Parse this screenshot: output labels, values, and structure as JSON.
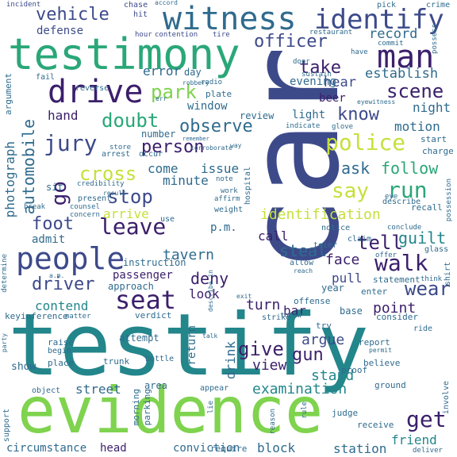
{
  "palette": {
    "dark": "#3b1f6b",
    "indigo": "#3d4a8a",
    "blue": "#2f6b8e",
    "teal": "#23868b",
    "green": "#2aa778",
    "lime": "#7fd34e",
    "yellow": "#c6e03b"
  },
  "words": {
    "car": "car",
    "testify": "testify",
    "evidence": "evidence",
    "testimony": "testimony",
    "witness": "witness",
    "identify": "identify",
    "man": "man",
    "drive": "drive",
    "people": "people",
    "police": "police",
    "officer": "officer",
    "vehicle": "vehicle",
    "jury": "jury",
    "scene": "scene",
    "take": "take",
    "doubt": "doubt",
    "person": "person",
    "identification": "identification",
    "say": "say",
    "run": "run",
    "leave": "leave",
    "stop": "stop",
    "prove": "prove",
    "seat": "seat",
    "walk": "walk",
    "tell": "tell",
    "get": "get",
    "wear": "wear",
    "give": "give",
    "gun": "gun",
    "examination": "examination",
    "driver": "driver",
    "go": "go",
    "automobile": "automobile",
    "cross": "cross",
    "observe": "observe",
    "park": "park",
    "know": "know",
    "follow": "follow",
    "record": "record",
    "establish": "establish",
    "hear": "hear",
    "foot": "foot",
    "arrive": "arrive",
    "deny": "deny",
    "tavern": "tavern",
    "steal": "steal",
    "guilt": "guilt",
    "face": "face",
    "point": "point",
    "turn": "turn",
    "argue": "argue",
    "drink": "drink",
    "view": "view",
    "stand": "stand",
    "street": "street",
    "friend": "friend",
    "block": "block",
    "station": "station",
    "conviction": "conviction",
    "circumstance": "circumstance",
    "head": "head",
    "defense": "defense",
    "error": "error",
    "motion": "motion",
    "night": "night",
    "hand": "hand",
    "photograph": "photograph",
    "passenger": "passenger",
    "contend": "contend",
    "admit": "admit",
    "come": "come",
    "minute": "minute",
    "issue": "issue",
    "ask": "ask",
    "call": "call",
    "look": "look",
    "bar": "bar",
    "pull": "pull",
    "evening": "evening",
    "beer": "beer",
    "window": "window",
    "review": "review",
    "light": "light",
    "incident": "incident",
    "chase": "chase",
    "hit": "hit",
    "accord": "accord",
    "pick": "pick",
    "crime": "crime",
    "hour": "hour",
    "contention": "contention",
    "tire": "tire",
    "restaurant": "restaurant",
    "commit": "commit",
    "possess": "possess",
    "door": "door",
    "have": "have",
    "sustain": "sustain",
    "eyewitness": "eyewitness",
    "argument": "argument",
    "fail": "fail",
    "reverse": "reverse",
    "day": "day",
    "robbery": "robbery",
    "radio": "radio",
    "plate": "plate",
    "err": "err",
    "number": "number",
    "indicate": "indicate",
    "glove": "glove",
    "occur": "occur",
    "arrest": "arrest",
    "remember": "remember",
    "store": "store",
    "corroborate": "corroborate",
    "way": "way",
    "start": "start",
    "charge": "charge",
    "possession": "possession",
    "credibility": "credibility",
    "sit": "sit",
    "result": "result",
    "note": "note",
    "work": "work",
    "hospital": "hospital",
    "describe": "describe",
    "eye": "eye",
    "break": "break",
    "present": "present",
    "counsel": "counsel",
    "affirm": "affirm",
    "weight": "weight",
    "recall": "recall",
    "use": "use",
    "concern": "concern",
    "pm": "p.m.",
    "notice": "notice",
    "conclude": "conclude",
    "claim": "claim",
    "trier": "trier",
    "offer": "offer",
    "glass": "glass",
    "shirt": "shirt",
    "instruction": "instruction",
    "approach": "approach",
    "allow": "allow",
    "reach": "reach",
    "determine": "determine",
    "am": "a.m.",
    "describe_in": "describe in",
    "statement": "statement",
    "think": "think",
    "exit": "exit",
    "offense": "offense",
    "year": "year",
    "enter": "enter",
    "inference": "inference",
    "matter": "matter",
    "key": "key",
    "verdict": "verdict",
    "strike": "strike",
    "throw": "throw",
    "try": "try",
    "base": "base",
    "consider": "consider",
    "ride": "ride",
    "party": "party",
    "raise": "raise",
    "begin": "begin",
    "place": "place",
    "attempt": "attempt",
    "talk": "talk",
    "return": "return",
    "report": "report",
    "permit": "permit",
    "involve": "involve",
    "believe": "believe",
    "trunk": "trunk",
    "bottle": "bottle",
    "show": "show",
    "object": "object",
    "area": "area",
    "appear": "appear",
    "proof": "proof",
    "ground": "ground",
    "support": "support",
    "morning": "morning",
    "parking": "parking",
    "lie": "lie",
    "reason": "reason",
    "rule": "rule",
    "judge": "judge",
    "receive": "receive",
    "require": "require",
    "deliver": "deliver"
  }
}
